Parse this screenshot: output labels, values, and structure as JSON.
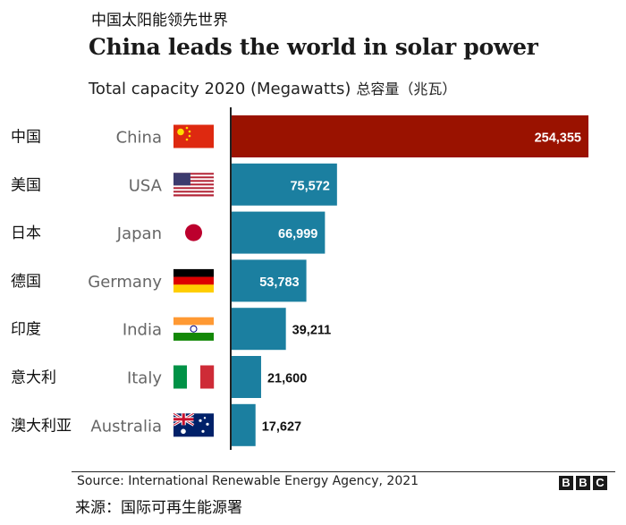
{
  "header": {
    "title_zh": "中国太阳能领先世界",
    "title_en": "China leads the world in solar power",
    "subtitle_en": "Total capacity 2020 (Megawatts)",
    "subtitle_zh": "总容量（兆瓦）"
  },
  "footer": {
    "source_en": "Source: International Renewable Energy Agency, 2021",
    "source_zh": "来源：国际可再生能源署",
    "logo": [
      "B",
      "B",
      "C"
    ]
  },
  "colors": {
    "china_bar": "#9a1200",
    "other_bar": "#1b7fa0",
    "label_inside": "#ffffff",
    "label_outside": "#111111"
  },
  "chart_data": {
    "type": "bar",
    "orientation": "horizontal",
    "title": "China leads the world in solar power",
    "subtitle": "Total capacity 2020 (Megawatts)",
    "xlim": [
      0,
      254355
    ],
    "categories": [
      "China",
      "USA",
      "Japan",
      "Germany",
      "India",
      "Italy",
      "Australia"
    ],
    "categories_zh": [
      "中国",
      "美国",
      "日本",
      "德国",
      "印度",
      "意大利",
      "澳大利亚"
    ],
    "flags": [
      "china-flag-icon",
      "usa-flag-icon",
      "japan-flag-icon",
      "germany-flag-icon",
      "india-flag-icon",
      "italy-flag-icon",
      "australia-flag-icon"
    ],
    "values": [
      254355,
      75572,
      66999,
      53783,
      39211,
      21600,
      17627
    ],
    "value_labels": [
      "254,355",
      "75,572",
      "66,999",
      "53,783",
      "39,211",
      "21,600",
      "17,627"
    ]
  }
}
